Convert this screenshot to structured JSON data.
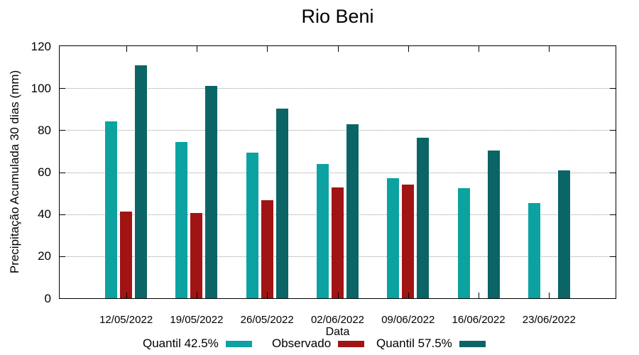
{
  "chart_data": {
    "type": "bar",
    "title": "Rio Beni",
    "xlabel": "Data",
    "ylabel": "Precipitação Acumulada 30 dias (mm)",
    "ylim": [
      0,
      120
    ],
    "yticks": [
      0,
      20,
      40,
      60,
      80,
      100,
      120
    ],
    "grid": true,
    "legend_position": "bottom-center",
    "categories": [
      "12/05/2022",
      "19/05/2022",
      "26/05/2022",
      "02/06/2022",
      "09/06/2022",
      "16/06/2022",
      "23/06/2022"
    ],
    "series": [
      {
        "name": "Quantil 42.5%",
        "color": "#0ca2a2",
        "values": [
          84.2,
          74.3,
          69.3,
          64.0,
          57.3,
          52.5,
          45.2
        ]
      },
      {
        "name": "Observado",
        "color": "#a11414",
        "values": [
          41.3,
          40.5,
          46.7,
          52.6,
          54.0,
          null,
          null
        ]
      },
      {
        "name": "Quantil 57.5%",
        "color": "#0b6566",
        "values": [
          110.8,
          101.1,
          90.4,
          82.9,
          76.5,
          70.2,
          60.8
        ]
      }
    ],
    "frame_color": "#000000",
    "grid_color": "#9a9a9a",
    "background": "#ffffff"
  }
}
